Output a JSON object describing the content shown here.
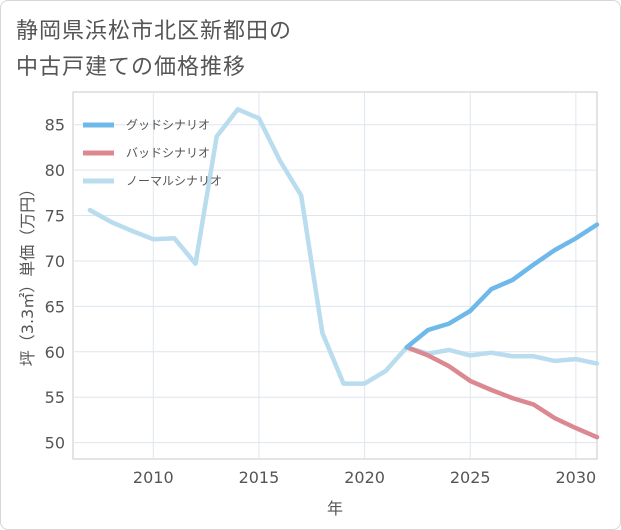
{
  "title_lines": [
    "静岡県浜松市北区新都田の",
    "中古戸建ての価格推移"
  ],
  "chart_data": {
    "type": "line",
    "xlabel": "年",
    "ylabel": "坪（3.3㎡）単価（万円）",
    "xlim": [
      2006.2,
      2031
    ],
    "ylim": [
      48.2,
      88.6
    ],
    "xticks": [
      2010,
      2015,
      2020,
      2025,
      2030
    ],
    "yticks": [
      50,
      55,
      60,
      65,
      70,
      75,
      80,
      85
    ],
    "grid": true,
    "legend_position": "top-left",
    "series": [
      {
        "name": "グッドシナリオ",
        "color": "#6fb9ea",
        "x": [
          2022,
          2023,
          2024,
          2025,
          2026,
          2027,
          2028,
          2029,
          2030,
          2031
        ],
        "y": [
          60.5,
          62.4,
          63.1,
          64.5,
          66.9,
          67.9,
          69.6,
          71.2,
          72.5,
          74.0
        ]
      },
      {
        "name": "バッドシナリオ",
        "color": "#dc8890",
        "x": [
          2022,
          2023,
          2024,
          2025,
          2026,
          2027,
          2028,
          2029,
          2030,
          2031
        ],
        "y": [
          60.5,
          59.6,
          58.4,
          56.8,
          55.8,
          54.9,
          54.2,
          52.7,
          51.6,
          50.6
        ]
      },
      {
        "name": "ノーマルシナリオ",
        "color": "#b9dcee",
        "x": [
          2007,
          2008,
          2009,
          2010,
          2011,
          2012,
          2013,
          2014,
          2015,
          2016,
          2017,
          2018,
          2019,
          2020,
          2021,
          2022,
          2023,
          2024,
          2025,
          2026,
          2027,
          2028,
          2029,
          2030,
          2031
        ],
        "y": [
          75.6,
          74.3,
          73.3,
          72.4,
          72.5,
          69.7,
          83.7,
          86.7,
          85.7,
          81.0,
          77.2,
          62.1,
          56.5,
          56.5,
          57.9,
          60.5,
          59.8,
          60.2,
          59.6,
          59.9,
          59.5,
          59.5,
          59.0,
          59.2,
          58.7
        ]
      }
    ]
  }
}
